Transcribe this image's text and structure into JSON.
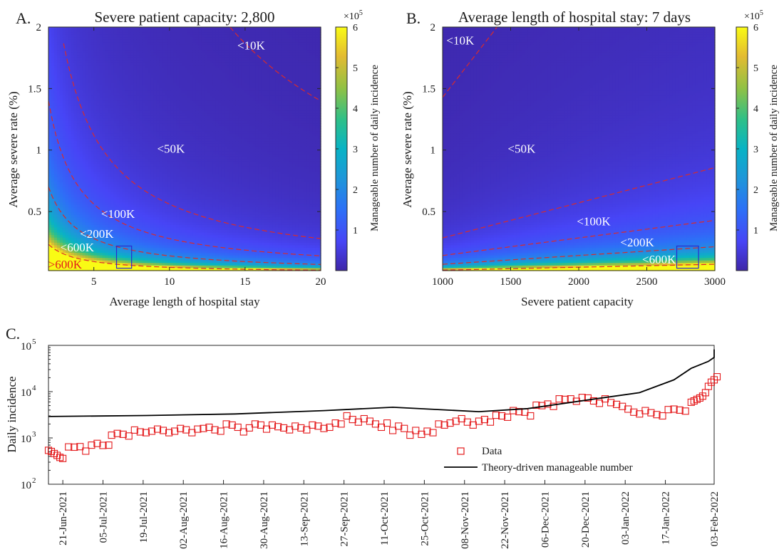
{
  "chart_data": [
    {
      "panel": "A.",
      "type": "heatmap",
      "title": "Severe patient capacity: 2,800",
      "xlabel": "Average length of hospital stay",
      "ylabel": "Average severe rate (%)",
      "xlim": [
        2,
        20
      ],
      "ylim": [
        0.02,
        2
      ],
      "xticks": [
        "5",
        "10",
        "15",
        "20"
      ],
      "yticks": [
        "0.5",
        "1",
        "1.5",
        "2"
      ],
      "colorbar": {
        "label": "Manageable number of daily incidence",
        "exponent": "×10",
        "exponent_power": "5",
        "ticks": [
          "1",
          "2",
          "3",
          "4",
          "5",
          "6"
        ],
        "range": [
          0,
          6
        ]
      },
      "capacity": 2800,
      "contours": [
        10000,
        50000,
        100000,
        200000,
        600000
      ],
      "annotations": [
        {
          "text": "<10K",
          "x": 15.4,
          "y": 1.84,
          "color": "#ffffff"
        },
        {
          "text": "<50K",
          "x": 10.1,
          "y": 1.0,
          "color": "#ffffff"
        },
        {
          "text": "<100K",
          "x": 6.6,
          "y": 0.47,
          "color": "#ffffff"
        },
        {
          "text": "<200K",
          "x": 5.2,
          "y": 0.31,
          "color": "#ffffff"
        },
        {
          "text": "<600K",
          "x": 3.9,
          "y": 0.2,
          "color": "#ffffff"
        },
        {
          "text": ">600K",
          "x": 3.1,
          "y": 0.06,
          "color": "#e21b1b"
        }
      ],
      "highlight_box": {
        "x": [
          6.5,
          7.5
        ],
        "y": [
          0.04,
          0.22
        ]
      }
    },
    {
      "panel": "B.",
      "type": "heatmap",
      "title": "Average length of hospital stay: 7 days",
      "xlabel": "Severe patient capacity",
      "ylabel": "Average severe rate (%)",
      "xlim": [
        1000,
        3000
      ],
      "ylim": [
        0.02,
        2
      ],
      "xticks": [
        "1000",
        "1500",
        "2000",
        "2500",
        "3000"
      ],
      "yticks": [
        "0.5",
        "1",
        "1.5",
        "2"
      ],
      "colorbar": {
        "label": "Manageable number of daily incidence",
        "exponent": "×10",
        "exponent_power": "5",
        "ticks": [
          "1",
          "2",
          "3",
          "4",
          "5",
          "6"
        ],
        "range": [
          0,
          6
        ]
      },
      "length_of_stay": 7,
      "contours": [
        10000,
        50000,
        100000,
        200000,
        600000
      ],
      "annotations": [
        {
          "text": "<10K",
          "x": 1130,
          "y": 1.88,
          "color": "#ffffff"
        },
        {
          "text": "<50K",
          "x": 1580,
          "y": 1.0,
          "color": "#ffffff"
        },
        {
          "text": "<100K",
          "x": 2110,
          "y": 0.41,
          "color": "#ffffff"
        },
        {
          "text": "<200K",
          "x": 2430,
          "y": 0.24,
          "color": "#ffffff"
        },
        {
          "text": "<600K",
          "x": 2590,
          "y": 0.1,
          "color": "#ffffff"
        }
      ],
      "highlight_box": {
        "x": [
          2720,
          2880
        ],
        "y": [
          0.04,
          0.22
        ]
      }
    },
    {
      "panel": "C.",
      "type": "line",
      "ylabel": "Daily incidence",
      "yscale": "log",
      "ylim": [
        100,
        100000
      ],
      "yticks": [
        "10",
        "10",
        "10",
        "10"
      ],
      "ytick_powers": [
        "2",
        "3",
        "4",
        "5"
      ],
      "xlim": [
        "2021-06-16",
        "2022-02-03"
      ],
      "xticks": [
        "21-Jun-2021",
        "05-Jul-2021",
        "19-Jul-2021",
        "02-Aug-2021",
        "16-Aug-2021",
        "30-Aug-2021",
        "13-Sep-2021",
        "27-Sep-2021",
        "11-Oct-2021",
        "25-Oct-2021",
        "08-Nov-2021",
        "22-Nov-2021",
        "06-Dec-2021",
        "20-Dec-2021",
        "03-Jan-2022",
        "17-Jan-2022",
        "03-Feb-2022"
      ],
      "legend": {
        "position": "bottom-right",
        "entries": [
          "Data",
          "Theory-driven manageable number"
        ]
      },
      "series": [
        {
          "name": "Data",
          "style": "square-markers",
          "color": "#e41a1c",
          "points": [
            [
              "2021-06-16",
              540
            ],
            [
              "2021-06-17",
              510
            ],
            [
              "2021-06-18",
              460
            ],
            [
              "2021-06-19",
              420
            ],
            [
              "2021-06-20",
              380
            ],
            [
              "2021-06-21",
              360
            ],
            [
              "2021-06-23",
              640
            ],
            [
              "2021-06-25",
              630
            ],
            [
              "2021-06-27",
              650
            ],
            [
              "2021-06-29",
              520
            ],
            [
              "2021-07-01",
              700
            ],
            [
              "2021-07-03",
              760
            ],
            [
              "2021-07-05",
              690
            ],
            [
              "2021-07-07",
              700
            ],
            [
              "2021-07-08",
              1150
            ],
            [
              "2021-07-10",
              1250
            ],
            [
              "2021-07-12",
              1200
            ],
            [
              "2021-07-14",
              1100
            ],
            [
              "2021-07-16",
              1480
            ],
            [
              "2021-07-18",
              1350
            ],
            [
              "2021-07-20",
              1300
            ],
            [
              "2021-07-22",
              1400
            ],
            [
              "2021-07-24",
              1550
            ],
            [
              "2021-07-26",
              1450
            ],
            [
              "2021-07-28",
              1300
            ],
            [
              "2021-07-30",
              1400
            ],
            [
              "2021-08-01",
              1600
            ],
            [
              "2021-08-03",
              1500
            ],
            [
              "2021-08-05",
              1300
            ],
            [
              "2021-08-07",
              1550
            ],
            [
              "2021-08-09",
              1600
            ],
            [
              "2021-08-11",
              1700
            ],
            [
              "2021-08-13",
              1500
            ],
            [
              "2021-08-15",
              1400
            ],
            [
              "2021-08-17",
              2000
            ],
            [
              "2021-08-19",
              1900
            ],
            [
              "2021-08-21",
              1700
            ],
            [
              "2021-08-23",
              1350
            ],
            [
              "2021-08-25",
              1650
            ],
            [
              "2021-08-27",
              2000
            ],
            [
              "2021-08-29",
              1900
            ],
            [
              "2021-08-31",
              1550
            ],
            [
              "2021-09-02",
              1900
            ],
            [
              "2021-09-04",
              1750
            ],
            [
              "2021-09-06",
              1650
            ],
            [
              "2021-09-08",
              1500
            ],
            [
              "2021-09-10",
              1800
            ],
            [
              "2021-09-12",
              1650
            ],
            [
              "2021-09-14",
              1500
            ],
            [
              "2021-09-16",
              1900
            ],
            [
              "2021-09-18",
              1800
            ],
            [
              "2021-09-20",
              1600
            ],
            [
              "2021-09-22",
              1700
            ],
            [
              "2021-09-24",
              2100
            ],
            [
              "2021-09-26",
              2000
            ],
            [
              "2021-09-28",
              3000
            ],
            [
              "2021-09-30",
              2500
            ],
            [
              "2021-10-02",
              2200
            ],
            [
              "2021-10-04",
              2600
            ],
            [
              "2021-10-06",
              2300
            ],
            [
              "2021-10-08",
              2000
            ],
            [
              "2021-10-10",
              1700
            ],
            [
              "2021-10-12",
              2100
            ],
            [
              "2021-10-14",
              1450
            ],
            [
              "2021-10-16",
              1800
            ],
            [
              "2021-10-18",
              1600
            ],
            [
              "2021-10-20",
              1150
            ],
            [
              "2021-10-22",
              1450
            ],
            [
              "2021-10-24",
              1200
            ],
            [
              "2021-10-26",
              1400
            ],
            [
              "2021-10-28",
              1300
            ],
            [
              "2021-10-30",
              2000
            ],
            [
              "2021-11-01",
              1900
            ],
            [
              "2021-11-03",
              2100
            ],
            [
              "2021-11-05",
              2300
            ],
            [
              "2021-11-07",
              2600
            ],
            [
              "2021-11-09",
              2200
            ],
            [
              "2021-11-11",
              1900
            ],
            [
              "2021-11-13",
              2300
            ],
            [
              "2021-11-15",
              2500
            ],
            [
              "2021-11-17",
              2200
            ],
            [
              "2021-11-19",
              3100
            ],
            [
              "2021-11-21",
              3000
            ],
            [
              "2021-11-23",
              2800
            ],
            [
              "2021-11-25",
              3900
            ],
            [
              "2021-11-27",
              3700
            ],
            [
              "2021-11-29",
              3600
            ],
            [
              "2021-12-01",
              3000
            ],
            [
              "2021-12-03",
              5100
            ],
            [
              "2021-12-05",
              5000
            ],
            [
              "2021-12-07",
              5400
            ],
            [
              "2021-12-09",
              4800
            ],
            [
              "2021-12-11",
              7000
            ],
            [
              "2021-12-13",
              6800
            ],
            [
              "2021-12-15",
              7000
            ],
            [
              "2021-12-17",
              6200
            ],
            [
              "2021-12-19",
              7500
            ],
            [
              "2021-12-21",
              7300
            ],
            [
              "2021-12-23",
              6300
            ],
            [
              "2021-12-25",
              5600
            ],
            [
              "2021-12-27",
              7000
            ],
            [
              "2021-12-29",
              5800
            ],
            [
              "2021-12-31",
              5300
            ],
            [
              "2022-01-02",
              4800
            ],
            [
              "2022-01-04",
              4200
            ],
            [
              "2022-01-06",
              3600
            ],
            [
              "2022-01-08",
              3300
            ],
            [
              "2022-01-10",
              3900
            ],
            [
              "2022-01-12",
              3500
            ],
            [
              "2022-01-14",
              3200
            ],
            [
              "2022-01-16",
              3000
            ],
            [
              "2022-01-18",
              4100
            ],
            [
              "2022-01-20",
              4200
            ],
            [
              "2022-01-22",
              4000
            ],
            [
              "2022-01-24",
              3800
            ],
            [
              "2022-01-26",
              5900
            ],
            [
              "2022-01-27",
              6300
            ],
            [
              "2022-01-28",
              6800
            ],
            [
              "2022-01-29",
              7300
            ],
            [
              "2022-01-30",
              8000
            ],
            [
              "2022-01-31",
              9500
            ],
            [
              "2022-02-01",
              13000
            ],
            [
              "2022-02-02",
              16000
            ],
            [
              "2022-02-03",
              18000
            ],
            [
              "2022-02-04",
              21000
            ]
          ]
        },
        {
          "name": "Theory-driven manageable number",
          "style": "line",
          "color": "#000000",
          "points": [
            [
              "2021-06-16",
              2900
            ],
            [
              "2021-07-20",
              3050
            ],
            [
              "2021-08-20",
              3300
            ],
            [
              "2021-09-20",
              3900
            ],
            [
              "2021-10-14",
              4600
            ],
            [
              "2021-11-13",
              3700
            ],
            [
              "2021-11-30",
              4300
            ],
            [
              "2021-12-25",
              7200
            ],
            [
              "2022-01-08",
              9500
            ],
            [
              "2022-01-20",
              18000
            ],
            [
              "2022-01-26",
              32000
            ],
            [
              "2022-02-01",
              45000
            ],
            [
              "2022-02-04",
              55000
            ],
            [
              "2022-02-08",
              82000
            ]
          ]
        }
      ]
    }
  ]
}
